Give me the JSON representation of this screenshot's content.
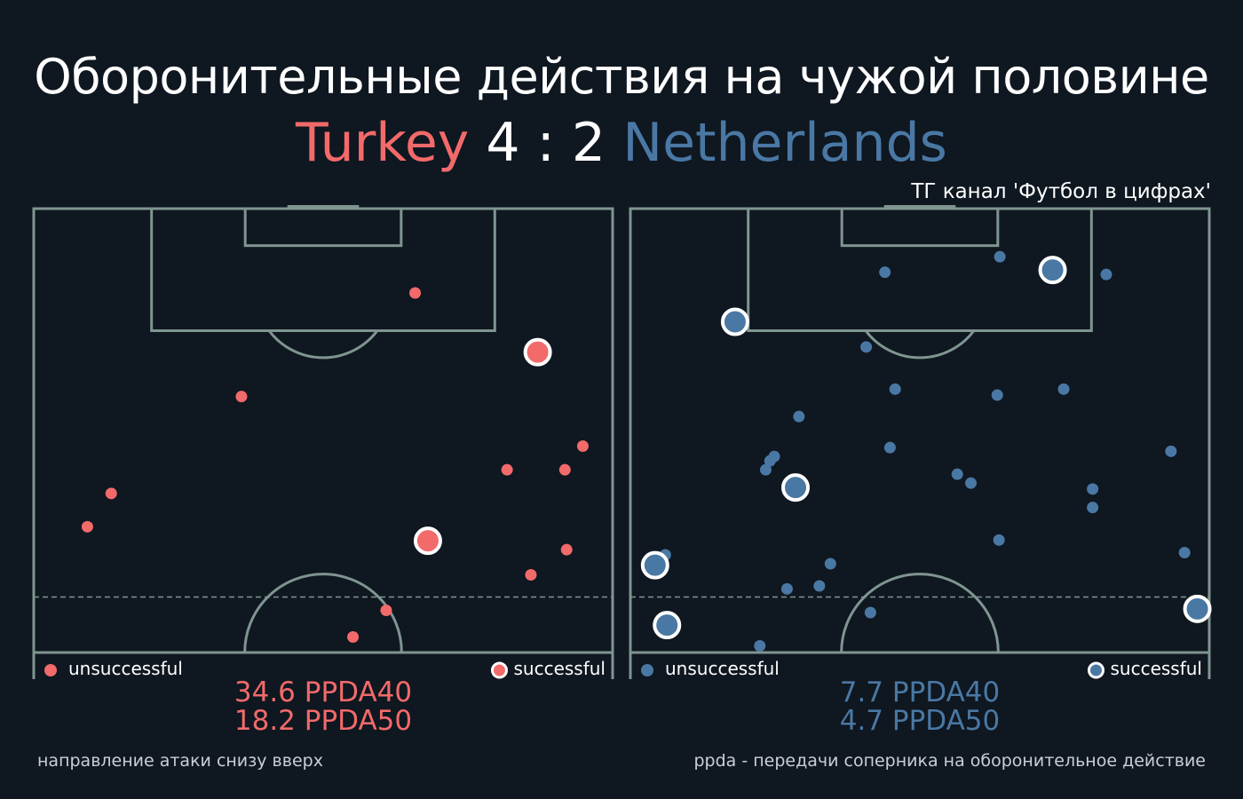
{
  "header": {
    "title": "Оборонительные действия на чужой половине",
    "home_team": "Turkey",
    "score": "4 : 2",
    "away_team": "Netherlands",
    "channel": "ТГ канал 'Футбол в цифрах'"
  },
  "colors": {
    "home": "#f26a6a",
    "away": "#4a78a4",
    "background": "#0f1720",
    "pitch_lines": "#7f9590"
  },
  "legend": {
    "unsuccessful": "unsuccessful",
    "successful": "successful"
  },
  "footer": {
    "left_note": "направление атаки снизу вверх",
    "right_note": "ppda - передачи соперника на оборонительное действие"
  },
  "panels": [
    {
      "team": "Turkey",
      "ppda40": "34.6 PPDA40",
      "ppda50": "18.2 PPDA50"
    },
    {
      "team": "Netherlands",
      "ppda40": "7.7 PPDA40",
      "ppda50": "4.7 PPDA50"
    }
  ],
  "chart_data": [
    {
      "type": "scatter",
      "team": "Turkey",
      "x_range": [
        0,
        68
      ],
      "y_range": [
        45,
        105
      ],
      "series": [
        {
          "name": "unsuccessful",
          "points": [
            [
              44.8,
              93.6
            ],
            [
              24.4,
              79.6
            ],
            [
              9.1,
              66.5
            ],
            [
              6.3,
              62.0
            ],
            [
              64.5,
              72.9
            ],
            [
              55.6,
              69.7
            ],
            [
              62.4,
              69.7
            ],
            [
              62.6,
              58.9
            ],
            [
              58.4,
              55.5
            ],
            [
              41.4,
              50.7
            ],
            [
              37.5,
              47.1
            ]
          ]
        },
        {
          "name": "successful",
          "points": [
            [
              59.2,
              85.6
            ],
            [
              46.3,
              60.1
            ]
          ]
        }
      ]
    },
    {
      "type": "scatter",
      "team": "Netherlands",
      "x_range": [
        0,
        68
      ],
      "y_range": [
        45,
        105
      ],
      "series": [
        {
          "name": "unsuccessful",
          "points": [
            [
              29.9,
              96.4
            ],
            [
              43.4,
              98.5
            ],
            [
              55.9,
              96.1
            ],
            [
              27.7,
              86.3
            ],
            [
              31.1,
              80.6
            ],
            [
              43.1,
              79.8
            ],
            [
              50.9,
              80.6
            ],
            [
              19.8,
              76.9
            ],
            [
              16.9,
              71.5
            ],
            [
              16.4,
              70.9
            ],
            [
              15.9,
              69.7
            ],
            [
              30.5,
              72.7
            ],
            [
              38.4,
              69.1
            ],
            [
              40.0,
              67.9
            ],
            [
              54.3,
              67.1
            ],
            [
              63.5,
              72.2
            ],
            [
              54.3,
              64.6
            ],
            [
              43.3,
              60.2
            ],
            [
              65.1,
              58.5
            ],
            [
              4.1,
              58.2
            ],
            [
              23.5,
              57.0
            ],
            [
              18.4,
              53.6
            ],
            [
              22.2,
              54.0
            ],
            [
              28.2,
              50.4
            ],
            [
              15.2,
              45.9
            ]
          ]
        },
        {
          "name": "successful",
          "points": [
            [
              12.3,
              89.7
            ],
            [
              49.6,
              96.7
            ],
            [
              19.4,
              67.3
            ],
            [
              2.9,
              56.8
            ],
            [
              4.3,
              48.7
            ],
            [
              66.6,
              50.9
            ]
          ]
        }
      ]
    }
  ]
}
